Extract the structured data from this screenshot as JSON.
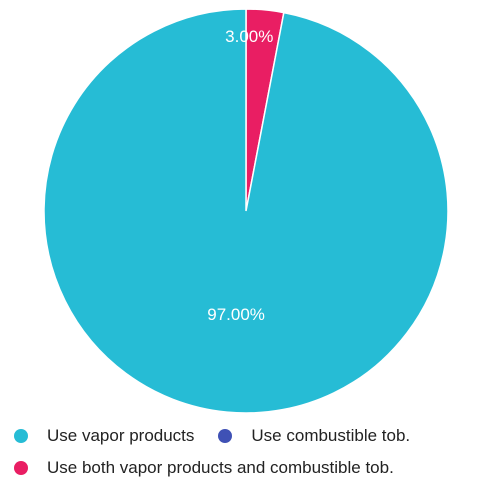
{
  "chart_data": {
    "type": "pie",
    "slices": [
      {
        "name": "Use vapor products",
        "value": 97.0,
        "label": "97.00%",
        "color": "#26BCD5"
      },
      {
        "name": "Use combustible tob.",
        "value": 0,
        "label": "",
        "color": "#3F51B5"
      },
      {
        "name": "Use both vapor products and combustible tob.",
        "value": 3.0,
        "label": "3.00%",
        "color": "#E91E63"
      }
    ],
    "legend_position": "bottom"
  }
}
